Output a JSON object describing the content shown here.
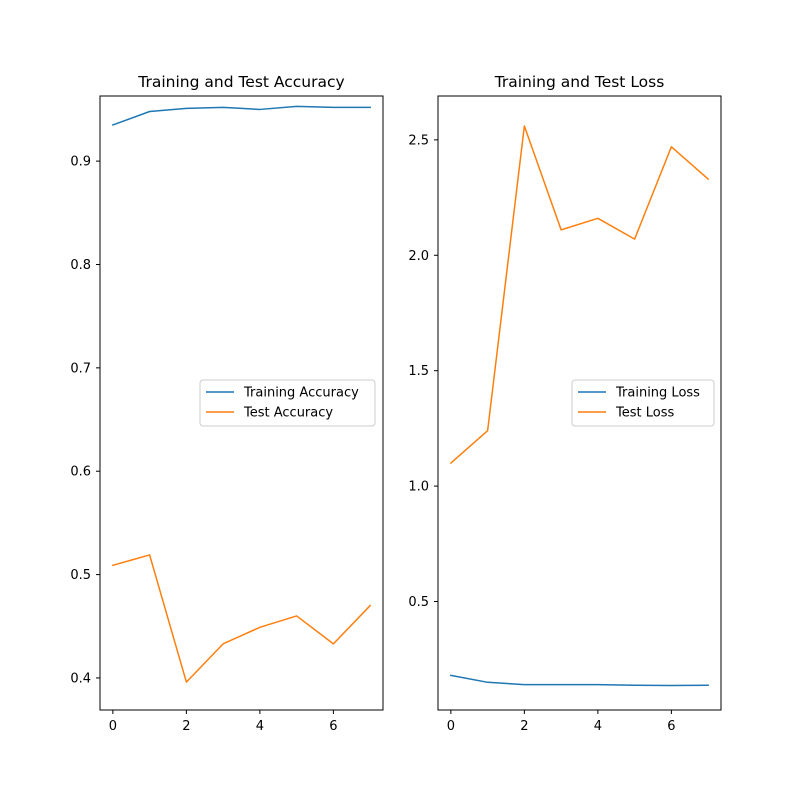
{
  "chart_data": [
    {
      "type": "line",
      "title": "Training and Test Accuracy",
      "xlabel": "",
      "ylabel": "",
      "x": [
        0,
        1,
        2,
        3,
        4,
        5,
        6,
        7
      ],
      "xlim": [
        -0.35,
        7.35
      ],
      "ylim": [
        0.369,
        0.963
      ],
      "xticks": [
        0,
        2,
        4,
        6
      ],
      "yticks": [
        0.4,
        0.5,
        0.6,
        0.7,
        0.8,
        0.9
      ],
      "ytick_labels": [
        "0.4",
        "0.5",
        "0.6",
        "0.7",
        "0.8",
        "0.9"
      ],
      "grid": false,
      "legend_location": "center-right",
      "series": [
        {
          "name": "Training Accuracy",
          "color": "#1f77b4",
          "values": [
            0.935,
            0.948,
            0.951,
            0.952,
            0.95,
            0.953,
            0.952,
            0.952
          ]
        },
        {
          "name": "Test Accuracy",
          "color": "#ff7f0e",
          "values": [
            0.509,
            0.519,
            0.396,
            0.433,
            0.449,
            0.46,
            0.433,
            0.47
          ]
        }
      ]
    },
    {
      "type": "line",
      "title": "Training and Test Loss",
      "xlabel": "",
      "ylabel": "",
      "x": [
        0,
        1,
        2,
        3,
        4,
        5,
        6,
        7
      ],
      "xlim": [
        -0.35,
        7.35
      ],
      "ylim": [
        0.03,
        2.69
      ],
      "xticks": [
        0,
        2,
        4,
        6
      ],
      "yticks": [
        0.5,
        1.0,
        1.5,
        2.0,
        2.5
      ],
      "ytick_labels": [
        "0.5",
        "1.0",
        "1.5",
        "2.0",
        "2.5"
      ],
      "grid": false,
      "legend_location": "center-right",
      "series": [
        {
          "name": "Training Loss",
          "color": "#1f77b4",
          "values": [
            0.18,
            0.15,
            0.14,
            0.14,
            0.14,
            0.137,
            0.136,
            0.137
          ]
        },
        {
          "name": "Test Loss",
          "color": "#ff7f0e",
          "values": [
            1.1,
            1.24,
            2.56,
            2.11,
            2.16,
            2.07,
            2.47,
            2.33
          ]
        }
      ]
    }
  ]
}
